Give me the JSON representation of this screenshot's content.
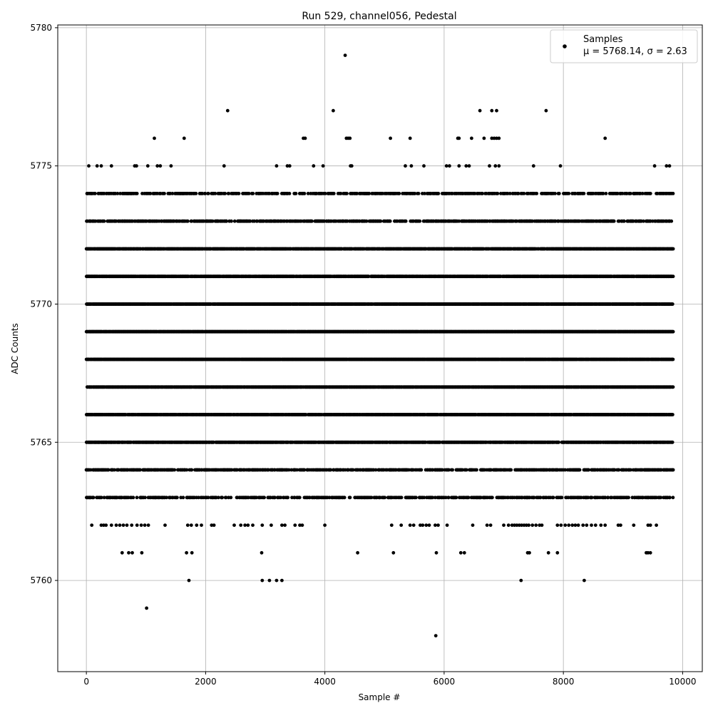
{
  "chart_data": {
    "type": "scatter",
    "title": "Run 529, channel056, Pedestal",
    "xlabel": "Sample #",
    "ylabel": "ADC Counts",
    "xlim": [
      -480,
      10330
    ],
    "ylim": [
      5756.7,
      5780.1
    ],
    "xticks": [
      0,
      2000,
      4000,
      6000,
      8000,
      10000
    ],
    "yticks": [
      5760,
      5765,
      5770,
      5775,
      5780
    ],
    "grid": true,
    "legend": {
      "placement": "top-right",
      "entries": [
        "Samples"
      ],
      "stats": "μ = 5768.14, σ = 2.63"
    },
    "series": [
      {
        "name": "Samples",
        "color": "#000000",
        "n_samples": 9850,
        "rows": [
          {
            "y": 5779,
            "x": [
              4340
            ]
          },
          {
            "y": 5777,
            "x": [
              2370,
              4140,
              6600,
              6800,
              6880,
              7710
            ]
          },
          {
            "y": 5776,
            "x": [
              1140,
              1640,
              3640,
              3670,
              4360,
              4390,
              4420,
              5100,
              5430,
              6230,
              6250,
              6460,
              6670,
              6800,
              6840,
              6880,
              6920,
              8700
            ]
          },
          {
            "y": 5775,
            "x": [
              40,
              180,
              250,
              420,
              810,
              840,
              1030,
              1190,
              1240,
              1420,
              2310,
              3190,
              3370,
              3410,
              3810,
              3970,
              4430,
              4450,
              5350,
              5450,
              5660,
              6040,
              6090,
              6250,
              6370,
              6420,
              6760,
              6860,
              6920,
              7500,
              7950,
              9530,
              9730,
              9780
            ]
          },
          {
            "y": 5774,
            "x_ranges": [
              [
                0,
                9840
              ]
            ],
            "density": 0.45
          },
          {
            "y": 5773,
            "x_ranges": [
              [
                0,
                9840
              ]
            ],
            "density": 0.55
          },
          {
            "y": 5772,
            "x_ranges": [
              [
                0,
                9840
              ]
            ],
            "density": 0.85
          },
          {
            "y": 5771,
            "x_ranges": [
              [
                0,
                9840
              ]
            ],
            "density": 0.9
          },
          {
            "y": 5770,
            "x_ranges": [
              [
                0,
                9840
              ]
            ],
            "density": 0.96
          },
          {
            "y": 5769,
            "x_ranges": [
              [
                0,
                9840
              ]
            ],
            "density": 0.98
          },
          {
            "y": 5768,
            "x_ranges": [
              [
                0,
                9840
              ]
            ],
            "density": 0.98
          },
          {
            "y": 5767,
            "x_ranges": [
              [
                0,
                9840
              ]
            ],
            "density": 0.96
          },
          {
            "y": 5766,
            "x_ranges": [
              [
                0,
                9840
              ]
            ],
            "density": 0.9
          },
          {
            "y": 5765,
            "x_ranges": [
              [
                0,
                9840
              ]
            ],
            "density": 0.85
          },
          {
            "y": 5764,
            "x_ranges": [
              [
                0,
                9840
              ]
            ],
            "density": 0.55
          },
          {
            "y": 5763,
            "x_ranges": [
              [
                0,
                9840
              ]
            ],
            "density": 0.45
          },
          {
            "y": 5762,
            "x": [
              90,
              250,
              290,
              330,
              420,
              500,
              560,
              620,
              680,
              760,
              850,
              920,
              980,
              1040,
              1320,
              1700,
              1760,
              1850,
              1930,
              2100,
              2140,
              2480,
              2590,
              2660,
              2710,
              2790,
              2950,
              3100,
              3280,
              3330,
              3500,
              3580,
              3620,
              4000,
              5120,
              5280,
              5430,
              5490,
              5600,
              5640,
              5700,
              5750,
              5850,
              5900,
              6050,
              6480,
              6720,
              6780,
              7000,
              7080,
              7140,
              7180,
              7220,
              7260,
              7300,
              7340,
              7380,
              7420,
              7480,
              7540,
              7600,
              7640,
              7900,
              7960,
              8030,
              8090,
              8150,
              8200,
              8250,
              8330,
              8390,
              8470,
              8540,
              8630,
              8700,
              8920,
              8960,
              9180,
              9420,
              9460,
              9560
            ]
          },
          {
            "y": 5761,
            "x": [
              600,
              710,
              770,
              930,
              1680,
              1770,
              2940,
              4550,
              5150,
              5870,
              6280,
              6340,
              7400,
              7430,
              7750,
              7900,
              9390,
              9420,
              9460
            ]
          },
          {
            "y": 5760,
            "x": [
              1720,
              2950,
              3070,
              3190,
              3280,
              7290,
              8350
            ]
          },
          {
            "y": 5759,
            "x": [
              1010
            ]
          },
          {
            "y": 5758,
            "x": [
              5860
            ]
          }
        ]
      }
    ]
  }
}
